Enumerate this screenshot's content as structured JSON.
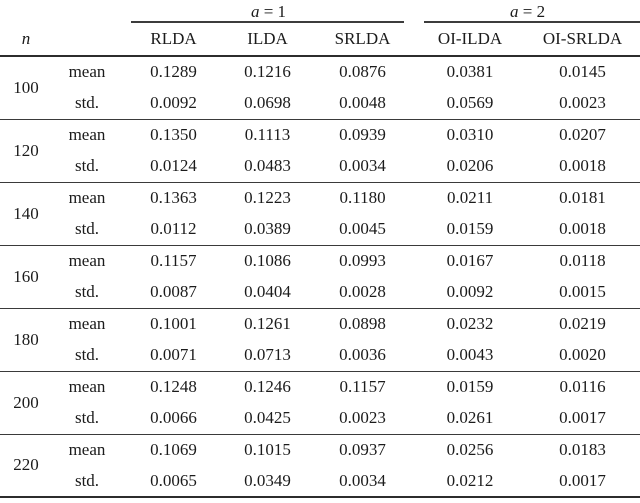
{
  "table": {
    "group_headers": [
      {
        "var": "a",
        "eq": "= 1"
      },
      {
        "var": "a",
        "eq": "= 2"
      }
    ],
    "n_header": "n",
    "method_columns": [
      "RLDA",
      "ILDA",
      "SRLDA",
      "OI-ILDA",
      "OI-SRLDA"
    ],
    "stat_labels": {
      "mean": "mean",
      "std": "std."
    },
    "blocks": [
      {
        "n": "100",
        "mean": [
          "0.1289",
          "0.1216",
          "0.0876",
          "0.0381",
          "0.0145"
        ],
        "std": [
          "0.0092",
          "0.0698",
          "0.0048",
          "0.0569",
          "0.0023"
        ]
      },
      {
        "n": "120",
        "mean": [
          "0.1350",
          "0.1113",
          "0.0939",
          "0.0310",
          "0.0207"
        ],
        "std": [
          "0.0124",
          "0.0483",
          "0.0034",
          "0.0206",
          "0.0018"
        ]
      },
      {
        "n": "140",
        "mean": [
          "0.1363",
          "0.1223",
          "0.1180",
          "0.0211",
          "0.0181"
        ],
        "std": [
          "0.0112",
          "0.0389",
          "0.0045",
          "0.0159",
          "0.0018"
        ]
      },
      {
        "n": "160",
        "mean": [
          "0.1157",
          "0.1086",
          "0.0993",
          "0.0167",
          "0.0118"
        ],
        "std": [
          "0.0087",
          "0.0404",
          "0.0028",
          "0.0092",
          "0.0015"
        ]
      },
      {
        "n": "180",
        "mean": [
          "0.1001",
          "0.1261",
          "0.0898",
          "0.0232",
          "0.0219"
        ],
        "std": [
          "0.0071",
          "0.0713",
          "0.0036",
          "0.0043",
          "0.0020"
        ]
      },
      {
        "n": "200",
        "mean": [
          "0.1248",
          "0.1246",
          "0.1157",
          "0.0159",
          "0.0116"
        ],
        "std": [
          "0.0066",
          "0.0425",
          "0.0023",
          "0.0261",
          "0.0017"
        ]
      },
      {
        "n": "220",
        "mean": [
          "0.1069",
          "0.1015",
          "0.0937",
          "0.0256",
          "0.0183"
        ],
        "std": [
          "0.0065",
          "0.0349",
          "0.0034",
          "0.0212",
          "0.0017"
        ]
      }
    ],
    "colors": {
      "rule_strong": "#2c2c2c",
      "rule_light": "#3a3a3a",
      "text": "#1b1b1b",
      "background": "#ffffff"
    }
  }
}
